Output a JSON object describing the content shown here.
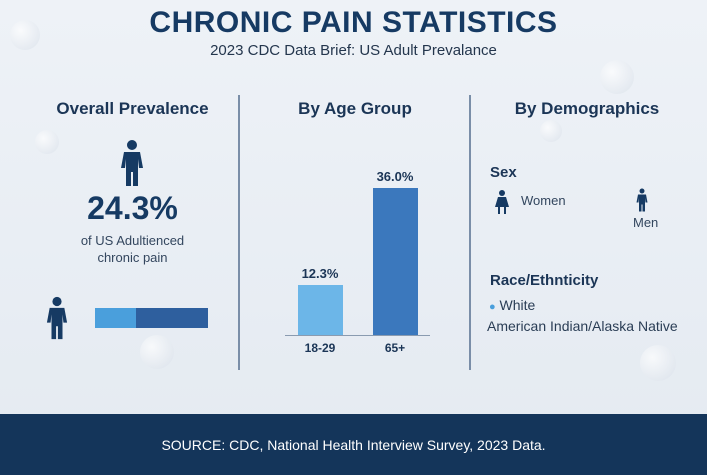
{
  "header": {
    "title": "CHRONIC PAIN STATISTICS",
    "subtitle": "2023 CDC Data Brief: US Adult Prevalance"
  },
  "overall": {
    "heading": "Overall Prevalence",
    "value": "24.3%",
    "caption_line1": "of US Adultienced",
    "caption_line2": "chronic pain",
    "icon": "person-icon",
    "progress_fill_percent": 36,
    "colors": {
      "light": "#4a9fdc",
      "dark": "#2e5f9e"
    }
  },
  "age": {
    "heading": "By Age Group"
  },
  "demographics": {
    "heading": "By Demographics",
    "sex_heading": "Sex",
    "women": "Women",
    "men": "Men",
    "race_heading": "Race/Ethnticity",
    "race_items": [
      "White",
      "American Indian/Alaska Native"
    ]
  },
  "footer": {
    "source": "SOURCE: CDC, National Health Interview Survey, 2023 Data."
  },
  "chart_data": {
    "type": "bar",
    "categories": [
      "18-29",
      "65+"
    ],
    "values": [
      12.3,
      36.0
    ],
    "value_labels": [
      "12.3%",
      "36.0%"
    ],
    "colors": [
      "#6cb6e8",
      "#3b78bd"
    ],
    "ylim": [
      0,
      36
    ]
  }
}
